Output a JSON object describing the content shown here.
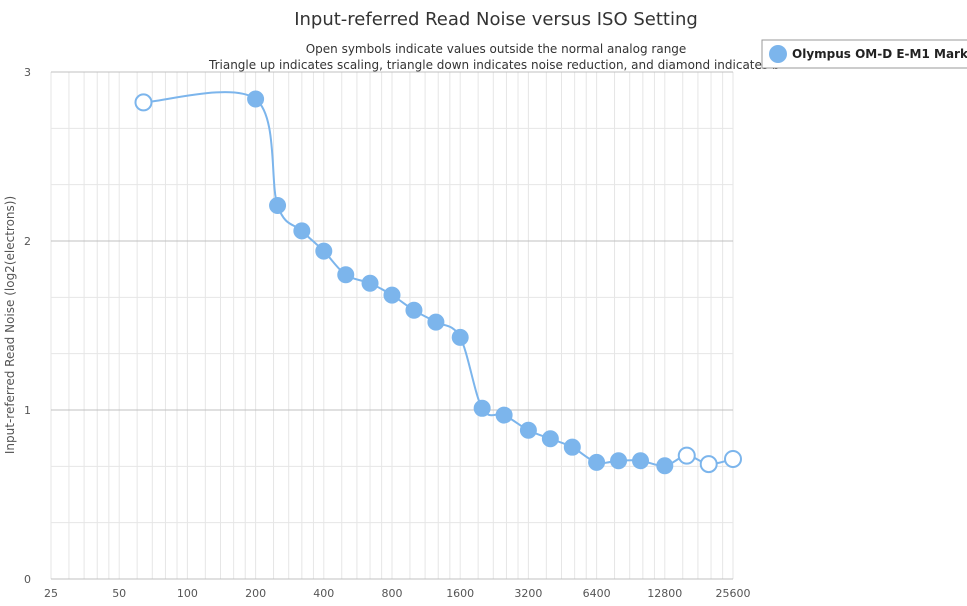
{
  "chart_data": {
    "type": "line",
    "title": "Input-referred Read Noise versus ISO Setting",
    "subtitle_lines": [
      "Open symbols indicate values outside the normal analog range",
      "Triangle up indicates scaling, triangle down indicates noise reduction, and diamond indicates b"
    ],
    "xlabel": "",
    "ylabel": "Input-referred Read Noise (log2(electrons))",
    "x_scale": "log2",
    "x_ticks": [
      25,
      50,
      100,
      200,
      400,
      800,
      1600,
      3200,
      6400,
      12800,
      25600
    ],
    "x_tick_labels": [
      "25",
      "50",
      "100",
      "200",
      "400",
      "800",
      "1600",
      "3200",
      "6400",
      "12800",
      "25600"
    ],
    "ylim": [
      0,
      3
    ],
    "y_ticks": [
      0,
      1,
      2,
      3
    ],
    "y_tick_labels": [
      "0",
      "1",
      "2",
      "3"
    ],
    "grid": true,
    "legend_position": "top-right",
    "colors": {
      "series": "#7cb5ec",
      "grid_major": "#c0c0c0",
      "grid_minor": "#e6e6e6"
    },
    "series": [
      {
        "name": "Olympus OM-D E-M1 Mark II",
        "points": [
          {
            "x": 64,
            "y": 2.82,
            "open": true
          },
          {
            "x": 200,
            "y": 2.84,
            "open": false
          },
          {
            "x": 250,
            "y": 2.21,
            "open": false
          },
          {
            "x": 320,
            "y": 2.06,
            "open": false
          },
          {
            "x": 400,
            "y": 1.94,
            "open": false
          },
          {
            "x": 500,
            "y": 1.8,
            "open": false
          },
          {
            "x": 640,
            "y": 1.75,
            "open": false
          },
          {
            "x": 800,
            "y": 1.68,
            "open": false
          },
          {
            "x": 1000,
            "y": 1.59,
            "open": false
          },
          {
            "x": 1250,
            "y": 1.52,
            "open": false
          },
          {
            "x": 1600,
            "y": 1.43,
            "open": false
          },
          {
            "x": 2000,
            "y": 1.01,
            "open": false
          },
          {
            "x": 2500,
            "y": 0.97,
            "open": false
          },
          {
            "x": 3200,
            "y": 0.88,
            "open": false
          },
          {
            "x": 4000,
            "y": 0.83,
            "open": false
          },
          {
            "x": 5000,
            "y": 0.78,
            "open": false
          },
          {
            "x": 6400,
            "y": 0.69,
            "open": false
          },
          {
            "x": 8000,
            "y": 0.7,
            "open": false
          },
          {
            "x": 10000,
            "y": 0.7,
            "open": false
          },
          {
            "x": 12800,
            "y": 0.67,
            "open": false
          },
          {
            "x": 16000,
            "y": 0.73,
            "open": true
          },
          {
            "x": 20000,
            "y": 0.68,
            "open": true
          },
          {
            "x": 25600,
            "y": 0.71,
            "open": true
          }
        ]
      }
    ]
  }
}
